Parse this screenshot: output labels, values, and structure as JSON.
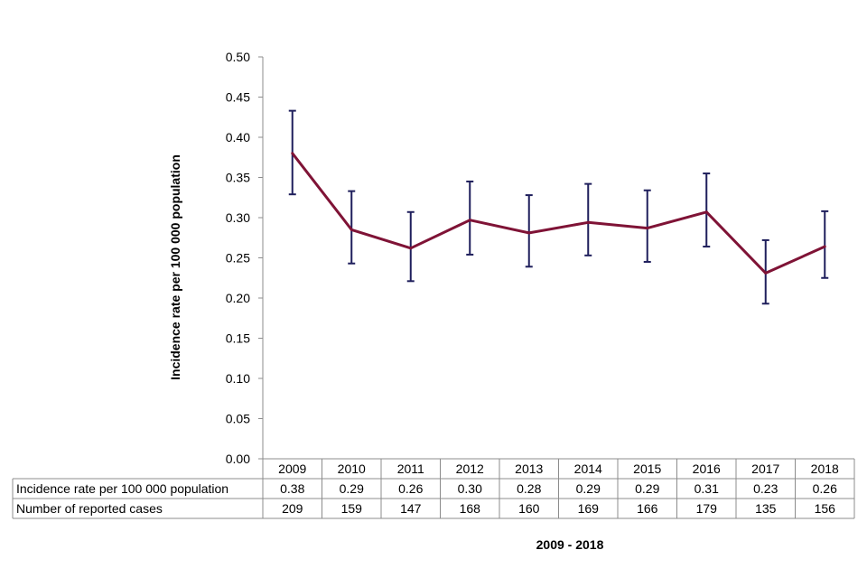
{
  "chart_data": {
    "type": "line",
    "title": "",
    "ylabel": "Incidence rate per 100 000 population",
    "xlabel": "2009 - 2018",
    "ylim": [
      0,
      0.5
    ],
    "ytick_labels": [
      "0.00",
      "0.05",
      "0.10",
      "0.15",
      "0.20",
      "0.25",
      "0.30",
      "0.35",
      "0.40",
      "0.45",
      "0.50"
    ],
    "ytick_values": [
      0,
      0.05,
      0.1,
      0.15,
      0.2,
      0.25,
      0.3,
      0.35,
      0.4,
      0.45,
      0.5
    ],
    "categories": [
      "2009",
      "2010",
      "2011",
      "2012",
      "2013",
      "2014",
      "2015",
      "2016",
      "2017",
      "2018"
    ],
    "series": [
      {
        "name": "Incidence rate per 100 000 population",
        "color": "#7f1336",
        "values": [
          0.38,
          0.285,
          0.262,
          0.297,
          0.281,
          0.294,
          0.287,
          0.307,
          0.231,
          0.264
        ],
        "error_low": [
          0.329,
          0.243,
          0.221,
          0.254,
          0.239,
          0.253,
          0.245,
          0.264,
          0.193,
          0.225
        ],
        "error_high": [
          0.433,
          0.333,
          0.307,
          0.345,
          0.328,
          0.342,
          0.334,
          0.355,
          0.272,
          0.308
        ]
      }
    ],
    "error_bar_color": "#1f1f5c",
    "table": {
      "rows": [
        {
          "label": "Incidence rate per 100 000 population",
          "values": [
            "0.38",
            "0.29",
            "0.26",
            "0.30",
            "0.28",
            "0.29",
            "0.29",
            "0.31",
            "0.23",
            "0.26"
          ]
        },
        {
          "label": "Number of reported cases",
          "values": [
            "209",
            "159",
            "147",
            "168",
            "160",
            "169",
            "166",
            "179",
            "135",
            "156"
          ]
        }
      ]
    }
  }
}
